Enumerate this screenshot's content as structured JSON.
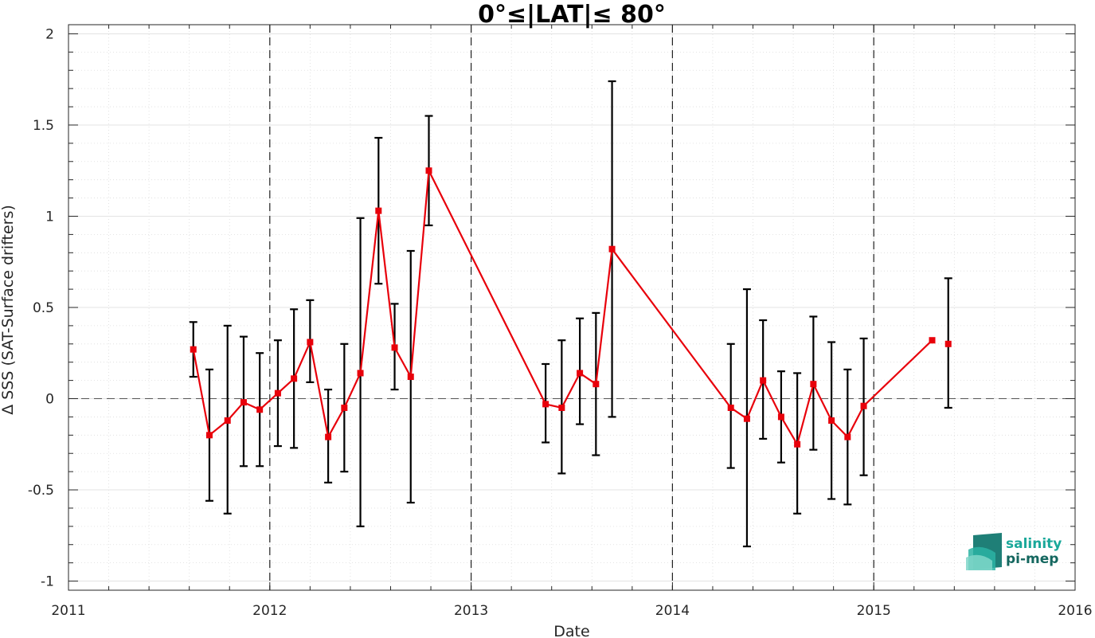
{
  "chart_data": {
    "type": "line",
    "title": "0°≤|LAT|≤ 80°",
    "xlabel": "Date",
    "ylabel": "Δ SSS (SAT-Surface drifters)",
    "xlim": [
      2011,
      2016
    ],
    "ylim": [
      -1.05,
      2.05
    ],
    "x_ticks": [
      2011,
      2012,
      2013,
      2014,
      2015,
      2016
    ],
    "x_tick_labels": [
      "2011",
      "2012",
      "2013",
      "2014",
      "2015",
      "2016"
    ],
    "y_ticks": [
      -1,
      -0.5,
      0,
      0.5,
      1,
      1.5,
      2
    ],
    "y_tick_labels": [
      "-1",
      "-0.5",
      "0",
      "0.5",
      "1",
      "1.5",
      "2"
    ],
    "vertical_dashed_lines": [
      2012,
      2013,
      2014,
      2015
    ],
    "horizontal_dashed_line": 0,
    "grid": true,
    "minor_grid": true,
    "series": [
      {
        "color": "#e8000b",
        "marker": "square",
        "segments": [
          {
            "x": [
              2011.62,
              2011.7,
              2011.79,
              2011.87,
              2011.95,
              2012.04,
              2012.12,
              2012.2,
              2012.29,
              2012.37,
              2012.45,
              2012.54,
              2012.62,
              2012.7,
              2012.79,
              2013.37,
              2013.45,
              2013.54,
              2013.62,
              2013.7,
              2014.29,
              2014.37,
              2014.45,
              2014.54,
              2014.62,
              2014.7,
              2014.79,
              2014.87,
              2014.95,
              2015.29
            ],
            "y": [
              0.27,
              -0.2,
              -0.12,
              -0.02,
              -0.06,
              0.03,
              0.11,
              0.31,
              -0.21,
              -0.05,
              0.14,
              1.03,
              0.28,
              0.12,
              1.25,
              -0.03,
              -0.05,
              0.14,
              0.08,
              0.82,
              -0.05,
              -0.11,
              0.1,
              -0.1,
              -0.25,
              0.08,
              -0.12,
              -0.21,
              -0.04,
              0.32
            ]
          },
          {
            "x": [
              2015.37
            ],
            "y": [
              0.3
            ]
          }
        ],
        "error_bars": {
          "x": [
            2011.62,
            2011.7,
            2011.79,
            2011.87,
            2011.95,
            2012.04,
            2012.12,
            2012.2,
            2012.29,
            2012.37,
            2012.45,
            2012.54,
            2012.62,
            2012.7,
            2012.79,
            2013.37,
            2013.45,
            2013.54,
            2013.62,
            2013.7,
            2014.29,
            2014.37,
            2014.45,
            2014.54,
            2014.62,
            2014.7,
            2014.79,
            2014.87,
            2014.95,
            2015.37
          ],
          "low": [
            0.12,
            -0.56,
            -0.63,
            -0.37,
            -0.37,
            -0.26,
            -0.27,
            0.09,
            -0.46,
            -0.4,
            -0.7,
            0.63,
            0.05,
            -0.57,
            0.95,
            -0.24,
            -0.41,
            -0.14,
            -0.31,
            -0.1,
            -0.38,
            -0.81,
            -0.22,
            -0.35,
            -0.63,
            -0.28,
            -0.55,
            -0.58,
            -0.42,
            -0.05
          ],
          "high": [
            0.42,
            0.16,
            0.4,
            0.34,
            0.25,
            0.32,
            0.49,
            0.54,
            0.05,
            0.3,
            0.99,
            1.43,
            0.52,
            0.81,
            1.55,
            0.19,
            0.32,
            0.44,
            0.47,
            1.74,
            0.3,
            0.6,
            0.43,
            0.15,
            0.14,
            0.45,
            0.31,
            0.16,
            0.33,
            0.66
          ]
        }
      }
    ]
  },
  "logo": {
    "line1": "salinity",
    "line2": "pi-mep",
    "color_line1": "#1aa89a",
    "color_line2": "#14675f",
    "icon": "salinity-pimep-logo-icon"
  }
}
